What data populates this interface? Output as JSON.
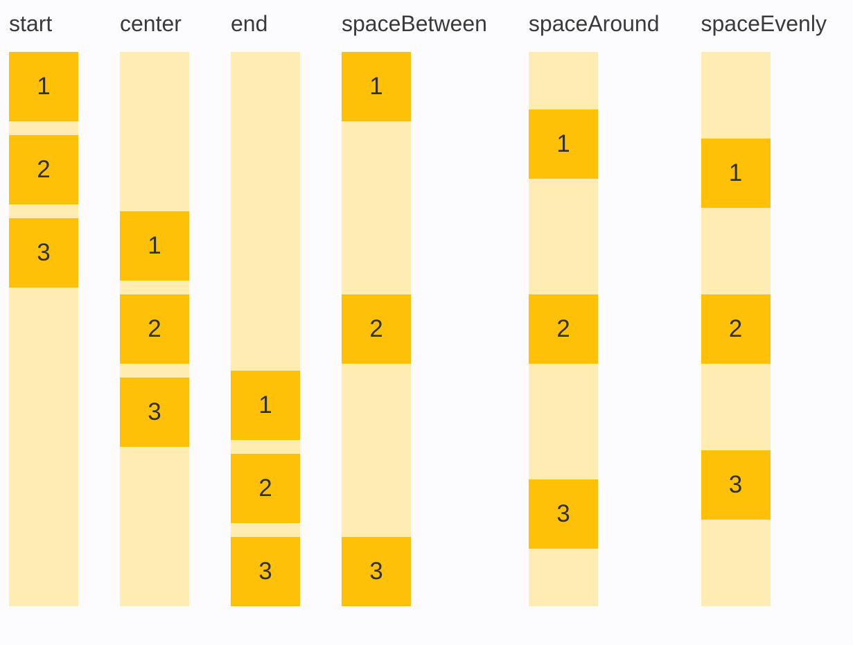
{
  "colors": {
    "page_background": "#FCFCFE",
    "track": "#FFECB3",
    "item": "#FFC107",
    "item_text": "#303030",
    "label_text": "#3A3A3A"
  },
  "demo": {
    "columns": [
      {
        "label": "start",
        "justify_content": "start",
        "items": [
          "1",
          "2",
          "3"
        ]
      },
      {
        "label": "center",
        "justify_content": "center",
        "items": [
          "1",
          "2",
          "3"
        ]
      },
      {
        "label": "end",
        "justify_content": "end",
        "items": [
          "1",
          "2",
          "3"
        ]
      },
      {
        "label": "spaceBetween",
        "justify_content": "spaceBetween",
        "items": [
          "1",
          "2",
          "3"
        ]
      },
      {
        "label": "spaceAround",
        "justify_content": "spaceAround",
        "items": [
          "1",
          "2",
          "3"
        ]
      },
      {
        "label": "spaceEvenly",
        "justify_content": "spaceEvenly",
        "items": [
          "1",
          "2",
          "3"
        ]
      }
    ]
  }
}
